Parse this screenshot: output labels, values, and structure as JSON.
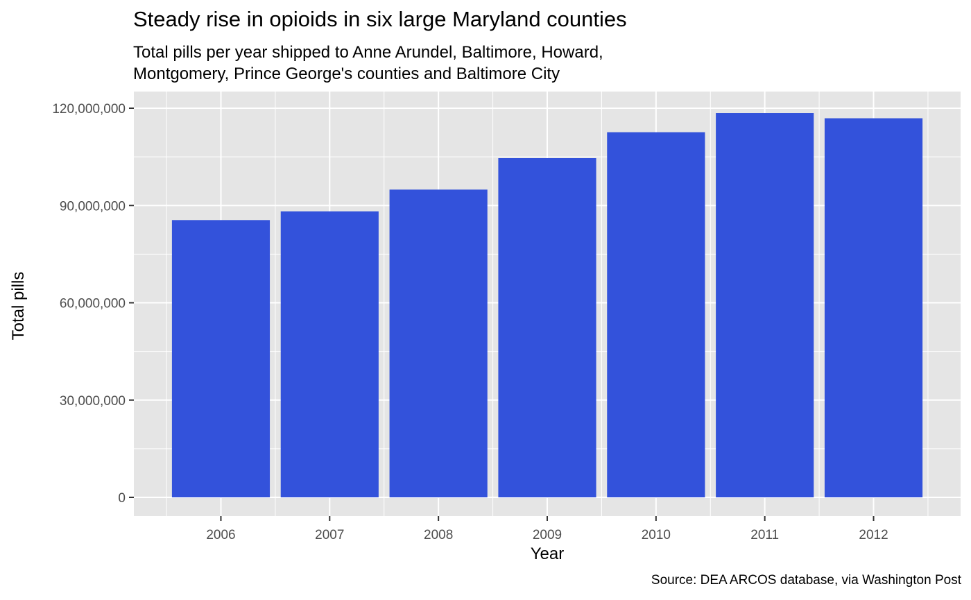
{
  "chart_data": {
    "type": "bar",
    "title": "Steady rise in opioids in six large Maryland counties",
    "subtitle_lines": [
      "Total pills per year shipped to Anne Arundel, Baltimore, Howard,",
      "Montgomery, Prince George's counties and Baltimore City"
    ],
    "caption": "Source: DEA ARCOS database, via Washington Post",
    "xlabel": "Year",
    "ylabel": "Total pills",
    "categories": [
      "2006",
      "2007",
      "2008",
      "2009",
      "2010",
      "2011",
      "2012"
    ],
    "values": [
      85500000,
      88200000,
      94900000,
      104600000,
      112600000,
      118500000,
      116900000
    ],
    "yticks": [
      0,
      30000000,
      60000000,
      90000000,
      120000000
    ],
    "ytick_labels": [
      "0",
      "30,000,000",
      "60,000,000",
      "90,000,000",
      "120,000,000"
    ],
    "ylim": [
      0,
      123000000
    ],
    "grid": true,
    "colors": {
      "bar": "#3352db",
      "panel": "#e5e5e5",
      "grid": "#ffffff",
      "tick_text": "#4d4d4d"
    }
  }
}
